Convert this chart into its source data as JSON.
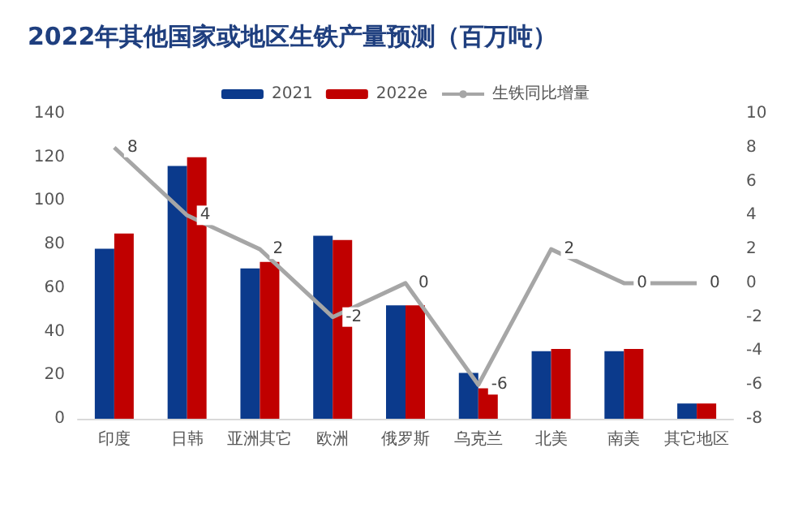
{
  "chart_data": {
    "type": "bar",
    "title": "2022年其他国家或地区生铁产量预测（百万吨）",
    "categories": [
      "印度",
      "日韩",
      "亚洲其它",
      "欧洲",
      "俄罗斯",
      "乌克兰",
      "北美",
      "南美",
      "其它地区"
    ],
    "series": [
      {
        "name": "2021",
        "color": "#0b3a8c",
        "values": [
          78,
          116,
          69,
          84,
          52,
          21,
          31,
          31,
          7
        ]
      },
      {
        "name": "2022e",
        "color": "#c00000",
        "values": [
          85,
          120,
          72,
          82,
          52,
          14,
          32,
          32,
          7
        ]
      },
      {
        "name": "生铁同比增量",
        "type": "line",
        "axis": "y2",
        "color": "#a6a6a6",
        "values": [
          8,
          4,
          2,
          -2,
          0,
          -6,
          2,
          0,
          0
        ],
        "data_labels": true
      }
    ],
    "ylim": [
      0,
      140
    ],
    "yticks": [
      0,
      20,
      40,
      60,
      80,
      100,
      120,
      140
    ],
    "y2lim": [
      -8,
      10
    ],
    "y2ticks": [
      -8,
      -6,
      -4,
      -2,
      0,
      2,
      4,
      6,
      8,
      10
    ],
    "legend": "top",
    "grid": false,
    "marker": "none"
  }
}
